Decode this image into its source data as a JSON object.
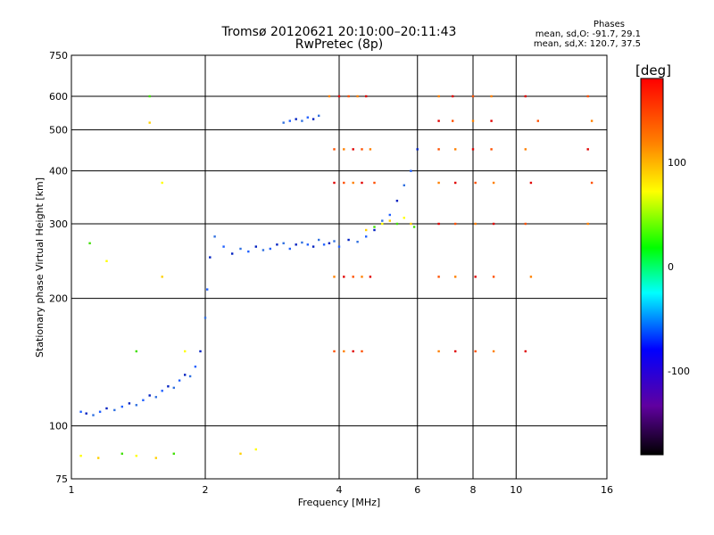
{
  "header": {
    "title": "Tromsø 20120621 20:10:00–20:11:43",
    "subtitle": "RwPretec (8p)",
    "phases_title": "Phases",
    "phases_o": "mean, sd,O: -91.7, 29.1",
    "phases_x": "mean, sd,X: 120.7, 37.5"
  },
  "colorbar": {
    "unit": "[deg]",
    "ticks": [
      "100",
      "0",
      "-100"
    ],
    "tick_values": [
      100,
      0,
      -100
    ],
    "range": [
      -180,
      180
    ]
  },
  "chart_data": {
    "type": "scatter",
    "xlabel": "Frequency [MHz]",
    "ylabel": "Stationary phase Virtual Height [km]",
    "xscale": "log",
    "yscale": "log",
    "xlim": [
      1,
      16
    ],
    "ylim": [
      75,
      750
    ],
    "x_ticks": [
      1,
      2,
      4,
      6,
      8,
      10,
      16
    ],
    "y_ticks": [
      75,
      100,
      200,
      300,
      400,
      500,
      600,
      750
    ],
    "grid": true,
    "color_mapped_by": "phase",
    "series": [
      {
        "name": "O-mode trace (blue)",
        "points": [
          [
            1.05,
            108
          ],
          [
            1.08,
            107
          ],
          [
            1.12,
            106
          ],
          [
            1.16,
            108
          ],
          [
            1.2,
            110
          ],
          [
            1.25,
            109
          ],
          [
            1.3,
            111
          ],
          [
            1.35,
            113
          ],
          [
            1.4,
            112
          ],
          [
            1.45,
            115
          ],
          [
            1.5,
            118
          ],
          [
            1.55,
            117
          ],
          [
            1.6,
            121
          ],
          [
            1.65,
            124
          ],
          [
            1.7,
            123
          ],
          [
            1.75,
            128
          ],
          [
            1.8,
            132
          ],
          [
            1.85,
            131
          ],
          [
            1.9,
            138
          ],
          [
            1.95,
            150
          ],
          [
            2.0,
            180
          ],
          [
            2.02,
            210
          ],
          [
            2.05,
            250
          ],
          [
            2.1,
            280
          ],
          [
            2.2,
            265
          ],
          [
            2.3,
            255
          ],
          [
            2.4,
            262
          ],
          [
            2.5,
            258
          ],
          [
            2.6,
            265
          ],
          [
            2.7,
            260
          ],
          [
            2.8,
            262
          ],
          [
            2.9,
            268
          ],
          [
            3.0,
            270
          ],
          [
            3.1,
            262
          ],
          [
            3.2,
            268
          ],
          [
            3.3,
            271
          ],
          [
            3.4,
            268
          ],
          [
            3.5,
            265
          ],
          [
            3.6,
            275
          ],
          [
            3.7,
            268
          ],
          [
            3.8,
            270
          ],
          [
            3.9,
            273
          ],
          [
            4.0,
            265
          ],
          [
            4.2,
            275
          ],
          [
            4.4,
            272
          ],
          [
            4.6,
            280
          ],
          [
            4.8,
            290
          ],
          [
            5.0,
            305
          ],
          [
            5.2,
            315
          ],
          [
            5.4,
            340
          ],
          [
            5.6,
            370
          ],
          [
            5.8,
            400
          ],
          [
            6.0,
            450
          ],
          [
            3.0,
            520
          ],
          [
            3.1,
            525
          ],
          [
            3.2,
            530
          ],
          [
            3.3,
            525
          ],
          [
            3.4,
            535
          ],
          [
            3.5,
            530
          ],
          [
            3.6,
            540
          ]
        ]
      },
      {
        "name": "X-mode echoes (red/orange)",
        "points": [
          [
            3.8,
            600
          ],
          [
            4.0,
            600
          ],
          [
            4.2,
            600
          ],
          [
            4.4,
            600
          ],
          [
            4.6,
            600
          ],
          [
            3.9,
            450
          ],
          [
            4.1,
            450
          ],
          [
            4.3,
            450
          ],
          [
            4.5,
            450
          ],
          [
            4.7,
            450
          ],
          [
            3.9,
            375
          ],
          [
            4.1,
            375
          ],
          [
            4.3,
            375
          ],
          [
            4.5,
            375
          ],
          [
            4.8,
            375
          ],
          [
            3.9,
            225
          ],
          [
            4.1,
            225
          ],
          [
            4.3,
            225
          ],
          [
            4.5,
            225
          ],
          [
            4.7,
            225
          ],
          [
            3.9,
            150
          ],
          [
            4.1,
            150
          ],
          [
            4.3,
            150
          ],
          [
            4.5,
            150
          ],
          [
            6.7,
            600
          ],
          [
            7.2,
            600
          ],
          [
            8.0,
            600
          ],
          [
            8.8,
            600
          ],
          [
            6.7,
            525
          ],
          [
            7.2,
            525
          ],
          [
            8.0,
            525
          ],
          [
            8.8,
            525
          ],
          [
            6.7,
            450
          ],
          [
            7.3,
            450
          ],
          [
            8.0,
            450
          ],
          [
            8.8,
            450
          ],
          [
            6.7,
            375
          ],
          [
            7.3,
            375
          ],
          [
            8.1,
            375
          ],
          [
            8.9,
            375
          ],
          [
            6.7,
            300
          ],
          [
            7.3,
            300
          ],
          [
            8.1,
            300
          ],
          [
            8.9,
            300
          ],
          [
            6.7,
            225
          ],
          [
            7.3,
            225
          ],
          [
            8.1,
            225
          ],
          [
            8.9,
            225
          ],
          [
            6.7,
            150
          ],
          [
            7.3,
            150
          ],
          [
            8.1,
            150
          ],
          [
            8.9,
            150
          ],
          [
            10.5,
            600
          ],
          [
            11.2,
            525
          ],
          [
            10.5,
            450
          ],
          [
            10.8,
            375
          ],
          [
            10.5,
            300
          ],
          [
            10.8,
            225
          ],
          [
            10.5,
            150
          ],
          [
            14.5,
            600
          ],
          [
            14.8,
            525
          ],
          [
            14.5,
            450
          ],
          [
            14.8,
            375
          ],
          [
            14.5,
            300
          ]
        ]
      },
      {
        "name": "Mixed echoes (yellow/green)",
        "points": [
          [
            4.6,
            290
          ],
          [
            4.8,
            295
          ],
          [
            5.0,
            300
          ],
          [
            5.2,
            305
          ],
          [
            5.4,
            300
          ],
          [
            5.6,
            310
          ],
          [
            5.8,
            300
          ],
          [
            5.9,
            295
          ],
          [
            1.05,
            85
          ],
          [
            1.15,
            84
          ],
          [
            1.3,
            86
          ],
          [
            1.4,
            85
          ],
          [
            1.55,
            84
          ],
          [
            1.7,
            86
          ],
          [
            2.6,
            88
          ],
          [
            2.4,
            86
          ],
          [
            1.1,
            270
          ],
          [
            1.2,
            245
          ],
          [
            1.5,
            520
          ],
          [
            1.5,
            600
          ],
          [
            1.6,
            375
          ],
          [
            1.6,
            225
          ],
          [
            1.4,
            150
          ],
          [
            1.8,
            150
          ]
        ]
      }
    ]
  }
}
